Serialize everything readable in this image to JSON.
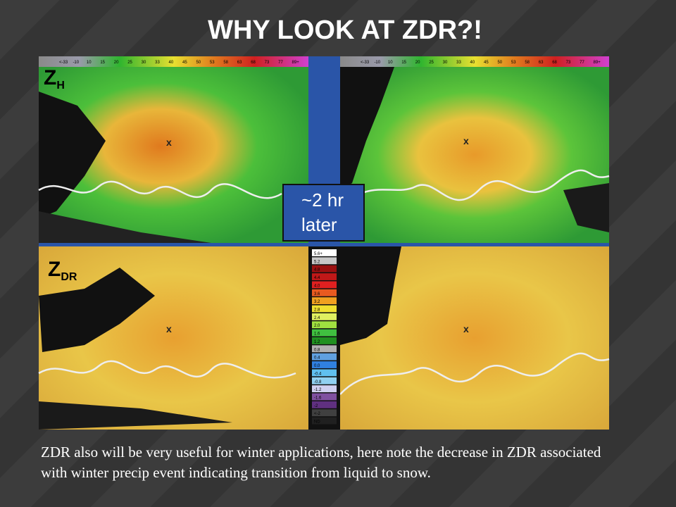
{
  "title": "WHY LOOK AT ZDR?!",
  "panels": {
    "reflectivity": {
      "symbol": "Z",
      "subscript": "H",
      "marker_left": "x",
      "marker_right": "x",
      "colorbar": [
        "<-33",
        "-10",
        "10",
        "15",
        "20",
        "25",
        "30",
        "33",
        "40",
        "45",
        "50",
        "53",
        "58",
        "63",
        "68",
        "73",
        "77",
        "89+"
      ]
    },
    "differential_reflectivity": {
      "symbol": "Z",
      "subscript": "DR",
      "marker_left": "x",
      "marker_right": "x",
      "colorbar": [
        "5.6+",
        "5.2",
        "4.8",
        "4.4",
        "4.0",
        "3.6",
        "3.2",
        "2.8",
        "2.4",
        "2.0",
        "1.6",
        "1.2",
        "0.8",
        "0.4",
        "0.0",
        "-0.4",
        "-0.8",
        "-1.2",
        "-1.6",
        "-2",
        "<-2",
        "ND"
      ]
    }
  },
  "annotation": {
    "line1": "~2 hr",
    "line2": "later"
  },
  "caption": "ZDR also will be very useful for winter applications, here note the decrease in ZDR associated with winter precip event indicating transition from liquid to snow."
}
